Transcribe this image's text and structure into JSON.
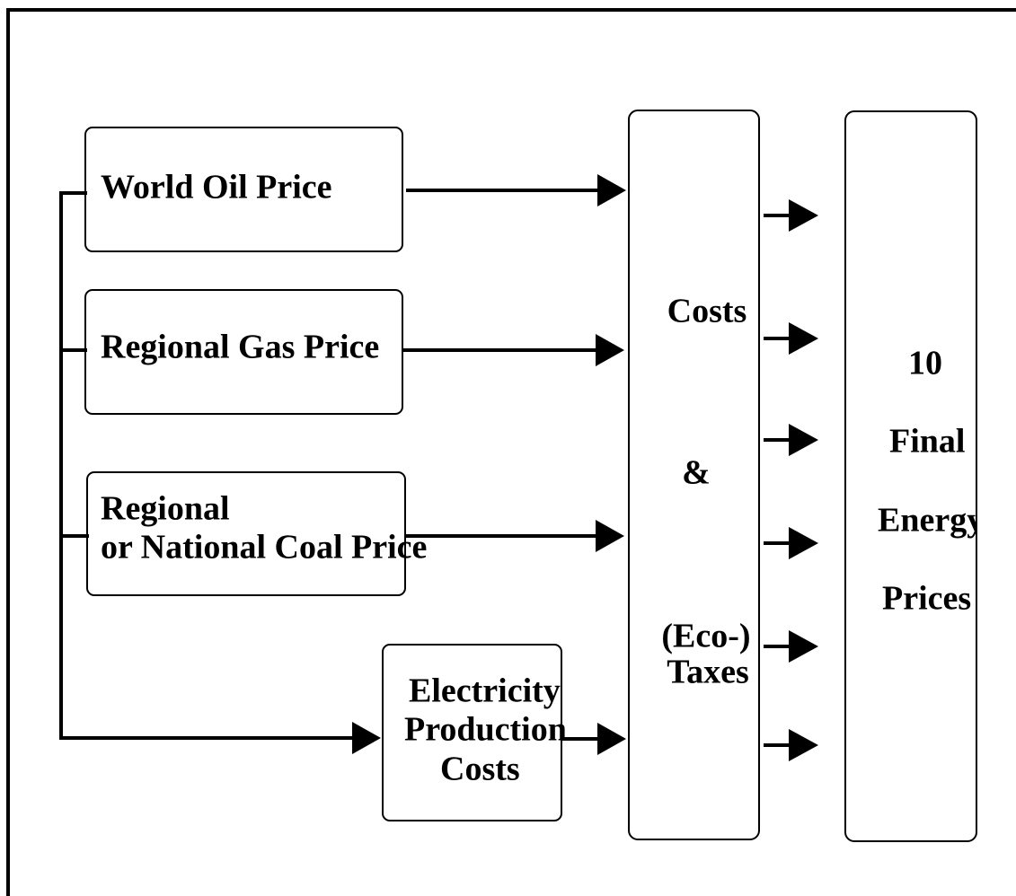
{
  "nodes": [
    {
      "lines": [
        "World Oil Price"
      ]
    },
    {
      "lines": [
        "Regional Gas Price"
      ]
    },
    {
      "lines": [
        "Regional",
        "or National Coal Price"
      ]
    },
    {
      "lines": [
        "Electricity",
        "Production",
        "Costs"
      ]
    },
    {
      "lines": [
        "Costs",
        "&",
        "(Eco-)",
        "Taxes"
      ]
    },
    {
      "lines": [
        "10",
        "Final",
        "Energy",
        "Prices"
      ]
    }
  ]
}
